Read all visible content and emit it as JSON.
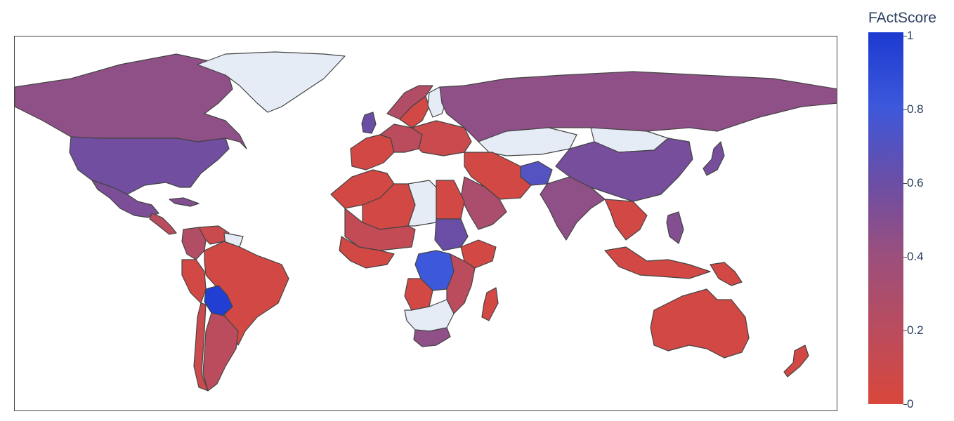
{
  "colorbar": {
    "title": "FActScore",
    "ticks": [
      {
        "label": "1",
        "value": 1.0
      },
      {
        "label": "0.8",
        "value": 0.8
      },
      {
        "label": "0.6",
        "value": 0.6
      },
      {
        "label": "0.4",
        "value": 0.4
      },
      {
        "label": "0.2",
        "value": 0.2
      },
      {
        "label": "0",
        "value": 0.0
      }
    ],
    "colorscale": [
      "#d9473b",
      "#ba4c5e",
      "#9b4f7c",
      "#6a4ea6",
      "#3d58db",
      "#1c3ad0"
    ],
    "range": [
      0,
      1
    ]
  },
  "map": {
    "projection": "equirectangular",
    "no_data_color": "#e5ecf6",
    "regions": [
      {
        "name": "Canada",
        "score": 0.45
      },
      {
        "name": "Greenland",
        "score": null
      },
      {
        "name": "United States",
        "score": 0.57
      },
      {
        "name": "Mexico",
        "score": 0.53
      },
      {
        "name": "Cuba",
        "score": 0.5
      },
      {
        "name": "Central America",
        "score": 0.2
      },
      {
        "name": "Colombia",
        "score": 0.25
      },
      {
        "name": "Venezuela",
        "score": 0.1
      },
      {
        "name": "Guianas",
        "score": null
      },
      {
        "name": "Peru",
        "score": 0.05
      },
      {
        "name": "Brazil",
        "score": 0.05
      },
      {
        "name": "Bolivia",
        "score": 0.97
      },
      {
        "name": "Argentina",
        "score": 0.2
      },
      {
        "name": "Chile",
        "score": 0.1
      },
      {
        "name": "United Kingdom",
        "score": 0.6
      },
      {
        "name": "Norway",
        "score": 0.25
      },
      {
        "name": "Sweden",
        "score": 0.05
      },
      {
        "name": "Finland",
        "score": null
      },
      {
        "name": "Western Europe",
        "score": 0.05
      },
      {
        "name": "Central Europe",
        "score": 0.2
      },
      {
        "name": "Eastern Europe",
        "score": 0.1
      },
      {
        "name": "Russia",
        "score": 0.45
      },
      {
        "name": "Kazakhstan",
        "score": null
      },
      {
        "name": "Mongolia",
        "score": null
      },
      {
        "name": "China",
        "score": 0.55
      },
      {
        "name": "Japan",
        "score": 0.55
      },
      {
        "name": "Afghanistan",
        "score": 0.7
      },
      {
        "name": "Middle East",
        "score": 0.05
      },
      {
        "name": "Saudi Arabia",
        "score": 0.3
      },
      {
        "name": "India",
        "score": 0.45
      },
      {
        "name": "Southeast Asia",
        "score": 0.05
      },
      {
        "name": "Philippines",
        "score": 0.5
      },
      {
        "name": "Indonesia",
        "score": 0.05
      },
      {
        "name": "Papua New Guinea",
        "score": 0.05
      },
      {
        "name": "Australia",
        "score": 0.05
      },
      {
        "name": "New Zealand",
        "score": 0.05
      },
      {
        "name": "North Africa",
        "score": 0.05
      },
      {
        "name": "Algeria",
        "score": 0.05
      },
      {
        "name": "Libya",
        "score": null
      },
      {
        "name": "Egypt",
        "score": 0.05
      },
      {
        "name": "Sahel",
        "score": 0.15
      },
      {
        "name": "Sudan",
        "score": 0.6
      },
      {
        "name": "Ethiopia",
        "score": 0.05
      },
      {
        "name": "West Africa",
        "score": 0.05
      },
      {
        "name": "DR Congo",
        "score": 0.8
      },
      {
        "name": "East Africa",
        "score": 0.2
      },
      {
        "name": "Angola",
        "score": 0.05
      },
      {
        "name": "Southern Africa",
        "score": null
      },
      {
        "name": "South Africa",
        "score": 0.45
      },
      {
        "name": "Madagascar",
        "score": 0.05
      }
    ]
  }
}
